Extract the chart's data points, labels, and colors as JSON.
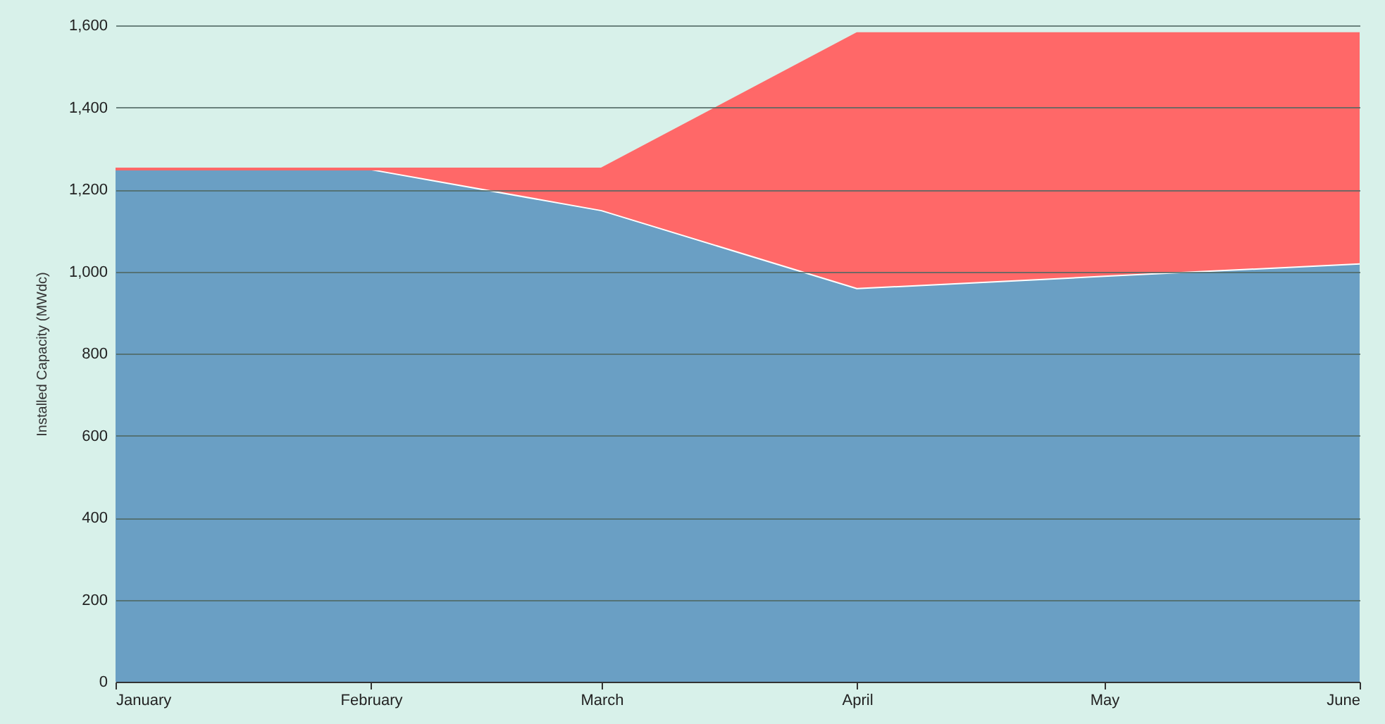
{
  "chart_data": {
    "type": "area",
    "stacked": true,
    "ylabel": "Installed Capacity (MWdc)",
    "x": [
      "--01-01",
      "--02-01",
      "--03-01",
      "--04-01",
      "--05-01",
      "--06-01"
    ],
    "xlim": [
      "--01-01",
      "--06-01"
    ],
    "xticks": [
      {
        "value": "--01-01",
        "label": "January"
      },
      {
        "value": "--02-01",
        "label": "February"
      },
      {
        "value": "--03-01",
        "label": "March"
      },
      {
        "value": "--04-01",
        "label": "April"
      },
      {
        "value": "--05-01",
        "label": "May"
      },
      {
        "value": "--06-01",
        "label": "June"
      }
    ],
    "ylim": [
      0,
      1600
    ],
    "yticks": [
      0,
      200,
      400,
      600,
      800,
      {
        "value": 1000,
        "label": "1,000"
      },
      {
        "value": 1200,
        "label": "1,200"
      },
      {
        "value": 1400,
        "label": "1,400"
      },
      {
        "value": 1600,
        "label": "1,600"
      }
    ],
    "grid": "y",
    "series": [
      {
        "color": "#6a9fc4",
        "values": [
          1250,
          1250,
          1150,
          960,
          990,
          1020
        ]
      },
      {
        "color": "#ff6868",
        "values": [
          0,
          0,
          100,
          620,
          590,
          560
        ]
      }
    ]
  }
}
